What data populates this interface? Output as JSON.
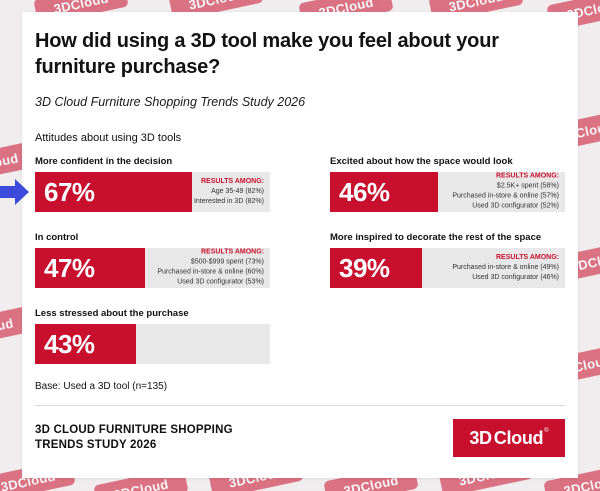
{
  "watermark": {
    "text": "3DCloud"
  },
  "card": {
    "title": "How did using a 3D tool make you feel about your furniture purchase?",
    "subtitle": "3D Cloud Furniture Shopping Trends Study 2026",
    "section_label": "Attitudes about using 3D tools",
    "base_note": "Base: Used a 3D tool (n=135)"
  },
  "bars": [
    {
      "label": "More confident in the decision",
      "value": "67%",
      "pct": 67,
      "results_title": "RESULTS AMONG:",
      "results": [
        "Age 35-49 (82%)",
        "Interested in 3D (82%)"
      ]
    },
    {
      "label": "In control",
      "value": "47%",
      "pct": 47,
      "results_title": "RESULTS AMONG:",
      "results": [
        "$500-$999 spent (73%)",
        "Purchased in-store & online (60%)",
        "Used 3D configurator (53%)"
      ]
    },
    {
      "label": "Less stressed about the purchase",
      "value": "43%",
      "pct": 43,
      "results": []
    },
    {
      "label": "Excited about how the space would look",
      "value": "46%",
      "pct": 46,
      "results_title": "RESULTS AMONG:",
      "results": [
        "$2.5K+ spent (58%)",
        "Purchased in-store & online (57%)",
        "Used 3D configurator (52%)"
      ]
    },
    {
      "label": "More inspired to decorate the rest of the space",
      "value": "39%",
      "pct": 39,
      "results_title": "RESULTS AMONG:",
      "results": [
        "Purchased in-store & online (49%)",
        "Used 3D configurator (46%)"
      ]
    }
  ],
  "footer": {
    "study_name": "3D CLOUD FURNITURE SHOPPING TRENDS STUDY 2026",
    "logo": {
      "part1": "3D",
      "part2": "Cloud",
      "reg": "®"
    }
  },
  "colors": {
    "brand_red": "#C8102E",
    "arrow_blue": "#3C4BDB",
    "track_gray": "#E9E8E8",
    "page_bg": "#F1ECED"
  },
  "chart_data": {
    "type": "bar",
    "title": "How did using a 3D tool make you feel about your furniture purchase?",
    "subtitle": "3D Cloud Furniture Shopping Trends Study 2026",
    "section": "Attitudes about using 3D tools",
    "unit": "%",
    "xlim": [
      0,
      100
    ],
    "categories": [
      "More confident in the decision",
      "In control",
      "Less stressed about the purchase",
      "Excited about how the space would look",
      "More inspired to decorate the rest of the space"
    ],
    "values": [
      67,
      47,
      43,
      46,
      39
    ],
    "base_note": "Base: Used a 3D tool (n=135)",
    "breakdowns": {
      "More confident in the decision": [
        "Age 35-49 (82%)",
        "Interested in 3D (82%)"
      ],
      "In control": [
        "$500-$999 spent (73%)",
        "Purchased in-store & online (60%)",
        "Used 3D configurator (53%)"
      ],
      "Excited about how the space would look": [
        "$2.5K+ spent (58%)",
        "Purchased in-store & online (57%)",
        "Used 3D configurator (52%)"
      ],
      "More inspired to decorate the rest of the space": [
        "Purchased in-store & online (49%)",
        "Used 3D configurator (46%)"
      ]
    }
  }
}
